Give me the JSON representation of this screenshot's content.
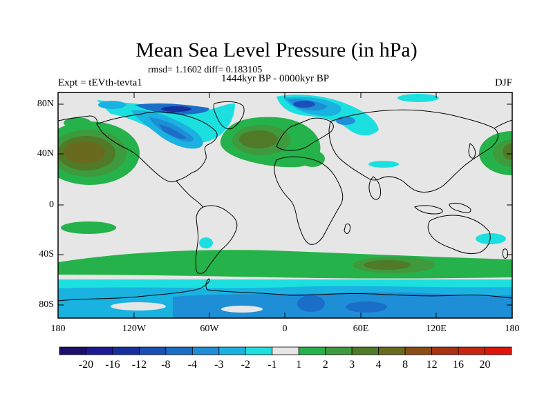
{
  "title": "Mean Sea Level Pressure (in hPa)",
  "stats": "rmsd= 1.1602 diff= 0.183105",
  "experiment": "Expt = tEVth-tevta1",
  "period": "1444kyr BP - 0000kyr BP",
  "season": "DJF",
  "map": {
    "type": "filled-contour",
    "projection": "cylindrical-equidistant",
    "lon_range": [
      -180,
      180
    ],
    "lat_range": [
      -90,
      90
    ],
    "y_ticks": [
      "80N",
      "40N",
      "0",
      "40S",
      "80S"
    ],
    "x_ticks": [
      "180",
      "120W",
      "60W",
      "0",
      "60E",
      "120E",
      "180"
    ],
    "features": [
      {
        "region": "North Pacific",
        "value_range": [
          3,
          8
        ],
        "sign": "positive"
      },
      {
        "region": "North Atlantic / Europe",
        "value_range": [
          2,
          4
        ],
        "sign": "positive"
      },
      {
        "region": "Arctic / Greenland / North America",
        "value_range": [
          -8,
          -1
        ],
        "sign": "negative"
      },
      {
        "region": "Southern Ocean 40-55S",
        "value_range": [
          1,
          4
        ],
        "sign": "positive"
      },
      {
        "region": "Antarctica",
        "value_range": [
          -4,
          -1
        ],
        "sign": "negative"
      }
    ]
  },
  "colorbar": {
    "labels": [
      "-20",
      "-16",
      "-12",
      "-8",
      "-4",
      "-3",
      "-2",
      "-1",
      "1",
      "2",
      "3",
      "4",
      "8",
      "12",
      "16",
      "20"
    ],
    "colors": [
      "#1b0f6e",
      "#1c1a96",
      "#15309e",
      "#1a4fb8",
      "#1a6ec8",
      "#1e8ed6",
      "#1ab2e0",
      "#1ce0e0",
      "#e6e6e6",
      "#26b24a",
      "#3e9a3c",
      "#507a28",
      "#6a6a1e",
      "#8a4e14",
      "#a83212",
      "#c82410",
      "#e0140a"
    ]
  },
  "colors": {
    "neutral": "#e6e6e6",
    "pos1": "#26b24a",
    "pos2": "#3e9a3c",
    "pos3": "#507a28",
    "pos4": "#6a6a1e",
    "neg1": "#1ce0e0",
    "neg2": "#1ab2e0",
    "neg3": "#1e8ed6",
    "neg4": "#1a6ec8",
    "neg5": "#1a4fb8",
    "neg6": "#15309e"
  }
}
